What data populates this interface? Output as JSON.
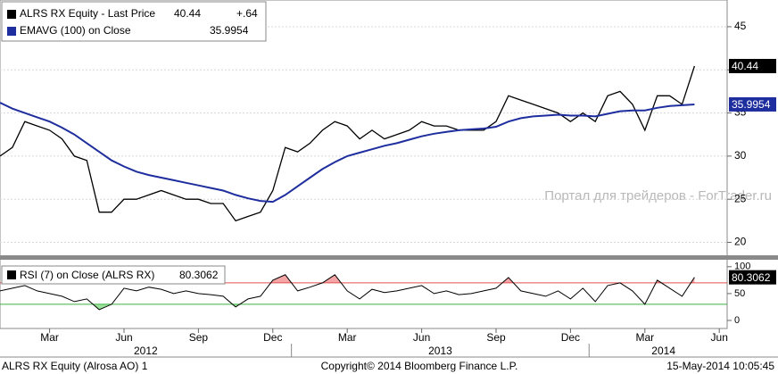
{
  "chart_data": [
    {
      "type": "line",
      "categories": [
        null,
        null,
        null,
        null,
        "Mar",
        null,
        null,
        null,
        null,
        null,
        "Jun",
        null,
        null,
        null,
        null,
        null,
        "Sep",
        null,
        null,
        null,
        null,
        null,
        "Dec",
        null,
        null,
        null,
        null,
        null,
        "Mar",
        null,
        null,
        null,
        null,
        null,
        "Jun",
        null,
        null,
        null,
        null,
        null,
        "Sep",
        null,
        null,
        null,
        null,
        null,
        "Dec",
        null,
        null,
        null,
        null,
        null,
        "Mar",
        null,
        null,
        null,
        null,
        null,
        "Jun",
        null
      ],
      "years": [
        "2012",
        "2013",
        "2014"
      ],
      "series": [
        {
          "name": "ALRS RX Equity - Last Price",
          "color": "#000000",
          "change": {
            "value": 0.64,
            "label": "+.64"
          },
          "values": [
            30,
            31,
            34,
            33.5,
            33,
            32,
            30,
            29.5,
            23.5,
            23.5,
            25,
            25,
            25.5,
            26,
            25.5,
            25,
            25,
            24.5,
            24.5,
            22.5,
            23,
            23.5,
            26,
            31,
            30.5,
            31.5,
            33,
            34,
            33.5,
            32,
            33,
            32,
            32.5,
            33,
            34,
            33.5,
            33.5,
            33,
            33,
            33,
            34,
            37,
            36.5,
            36,
            35.5,
            35,
            34,
            35,
            34,
            37,
            37.5,
            36,
            33,
            37,
            37,
            36,
            40.44,
            null,
            null,
            null
          ]
        },
        {
          "name": "EMAVG (100) on Close",
          "color": "#1f2e9e",
          "values": [
            36.2,
            35.5,
            35,
            34.5,
            34,
            33.3,
            32.5,
            31.5,
            30.5,
            29.5,
            28.8,
            28.2,
            27.8,
            27.5,
            27.2,
            26.9,
            26.6,
            26.3,
            26,
            25.5,
            25.1,
            24.8,
            24.7,
            25.5,
            26.5,
            27.5,
            28.5,
            29.3,
            30,
            30.4,
            30.8,
            31.2,
            31.5,
            31.9,
            32.3,
            32.6,
            32.8,
            33,
            33.1,
            33.2,
            33.4,
            34,
            34.4,
            34.6,
            34.7,
            34.8,
            34.7,
            34.7,
            34.6,
            34.9,
            35.2,
            35.3,
            35.3,
            35.6,
            35.8,
            35.9,
            35.9954,
            null,
            null,
            null
          ]
        }
      ],
      "ylim": [
        18.5,
        48.1
      ],
      "yticks": [
        20,
        25,
        30,
        35,
        40,
        45
      ],
      "grid": true,
      "watermark": "Портал для трейдеров - ForTrader.ru"
    },
    {
      "type": "rsi",
      "series": [
        {
          "name": "RSI (7) on Close (ALRS RX)",
          "color": "#000000",
          "values": [
            55,
            60,
            65,
            55,
            50,
            45,
            35,
            40,
            20,
            30,
            60,
            55,
            62,
            58,
            50,
            55,
            50,
            48,
            45,
            25,
            40,
            45,
            75,
            85,
            55,
            62,
            70,
            85,
            55,
            40,
            58,
            52,
            55,
            60,
            65,
            50,
            55,
            48,
            50,
            55,
            60,
            80,
            55,
            50,
            45,
            55,
            40,
            60,
            35,
            65,
            70,
            55,
            30,
            75,
            60,
            45,
            80.3062,
            null,
            null,
            null
          ]
        }
      ],
      "overbought": 70,
      "oversold": 30,
      "overbought_color": "#e05050",
      "oversold_color": "#3cb043",
      "ylim": [
        -15,
        113
      ],
      "yticks": [
        0,
        50,
        100
      ]
    }
  ],
  "footer": {
    "left": "ALRS RX Equity (Alrosa AO) 1",
    "center": "Copyright© 2014 Bloomberg Finance L.P.",
    "right": "15-May-2014 10:05:45"
  }
}
